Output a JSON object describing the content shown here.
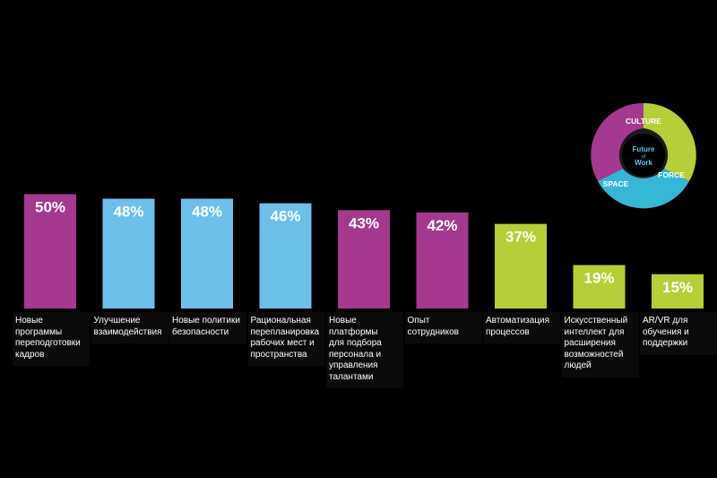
{
  "chart_data": {
    "type": "bar",
    "ylim": [
      0,
      100
    ],
    "categories": [
      "Новые программы переподготовки кадров",
      "Улучшение взаимодействия",
      "Новые политики безопасности",
      "Рациональная перепланировка рабочих мест и пространства",
      "Новые платформы для подбора персонала и управления талантами",
      "Опыт сотрудников",
      "Автоматизация процессов",
      "Искусственный интеллект для расширения возможностей людей",
      "AR/VR для обучения и поддержки"
    ],
    "category_lines": [
      [
        "Новые программы",
        "переподготовки",
        "кадров"
      ],
      [
        "Улучшение",
        "взаимодействия"
      ],
      [
        "Новые политики",
        "безопасности"
      ],
      [
        "Рациональная",
        "перепланировка",
        "рабочих мест и",
        "пространства"
      ],
      [
        "Новые  платформы",
        "для подбора",
        "персонала и",
        "управления",
        "талантами"
      ],
      [
        "Опыт",
        "сотрудников"
      ],
      [
        "Автоматизация",
        "процессов"
      ],
      [
        "Искусственный",
        "интеллект для",
        "расширения",
        "возможностей",
        "людей"
      ],
      [
        "AR/VR для",
        "обучения и",
        "поддержки"
      ]
    ],
    "values": [
      50,
      48,
      48,
      46,
      43,
      42,
      37,
      19,
      15
    ],
    "value_labels": [
      "50%",
      "48%",
      "48%",
      "46%",
      "43%",
      "42%",
      "37%",
      "19%",
      "15%"
    ],
    "bar_colors": [
      "#a4398f",
      "#6cc0ea",
      "#6cc0ea",
      "#6cc0ea",
      "#a4398f",
      "#a4398f",
      "#b4cf38",
      "#b4cf38",
      "#b4cf38"
    ],
    "grid": false
  },
  "logo": {
    "culture": "CULTURE",
    "space": "SPACE",
    "force": "FORCE",
    "center_top": "Future",
    "center_mid": "of",
    "center_bottom": "Work",
    "colors": {
      "culture": "#a4398f",
      "space": "#35b6d5",
      "force": "#b4cf38"
    }
  }
}
